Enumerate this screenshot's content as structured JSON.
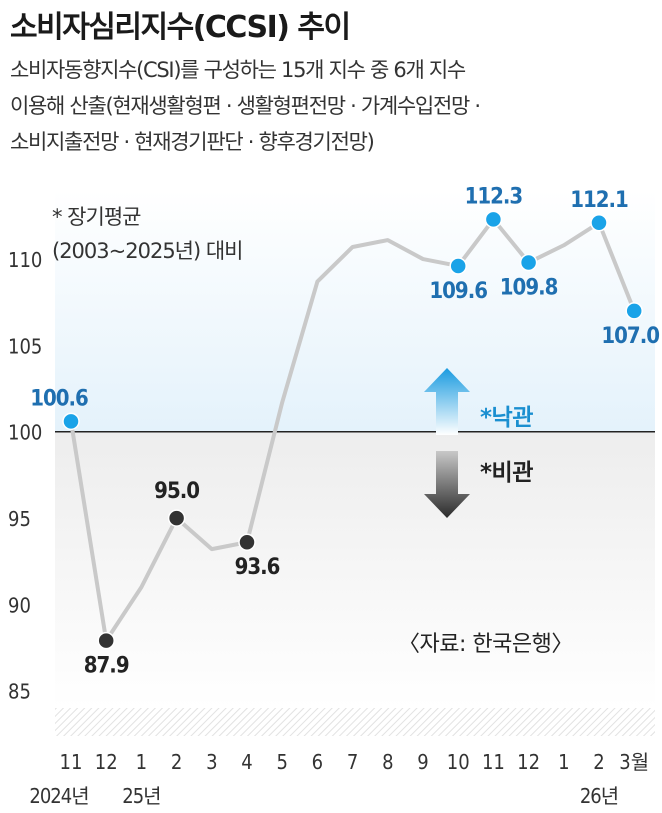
{
  "title": "소비자심리지수(CCSI) 추이",
  "subtitle_lines": [
    "소비자동향지수(CSI)를 구성하는 15개 지수 중 6개 지수",
    "이용해 산출(현재생활형편 · 생활형편전망 · 가계수입전망 ·",
    "소비지출전망 · 현재경기판단 · 향후경기전망)"
  ],
  "note_lines": [
    "* 장기평균",
    "(2003~2025년) 대비"
  ],
  "source": "〈자료: 한국은행〉",
  "optimism_label": "*낙관",
  "pessimism_label": "*비관",
  "colors": {
    "line": "#c9c9c9",
    "marker_up": "#1aa3e8",
    "marker_down": "#333333",
    "label_up": "#1f6fb0",
    "label_down": "#222222",
    "band_top": "#e4f2fb",
    "band_bottom": "#ededed",
    "baseline": "#222222"
  },
  "chart_data": {
    "type": "line",
    "x_labels": [
      "11",
      "12",
      "1",
      "2",
      "3",
      "4",
      "5",
      "6",
      "7",
      "8",
      "9",
      "10",
      "11",
      "12",
      "1",
      "2",
      "3월"
    ],
    "year_labels": [
      {
        "index": 0,
        "label": "2024년"
      },
      {
        "index": 2,
        "label": "25년"
      },
      {
        "index": 15,
        "label": "26년"
      }
    ],
    "values": [
      100.6,
      87.9,
      91.0,
      95.0,
      93.2,
      93.6,
      101.7,
      108.7,
      110.7,
      111.1,
      110.0,
      109.6,
      112.3,
      109.8,
      110.8,
      112.1,
      107.0
    ],
    "labeled_points": [
      0,
      1,
      3,
      5,
      11,
      12,
      13,
      15,
      16
    ],
    "point_labels": [
      "100.6",
      "87.9",
      "",
      "95.0",
      "",
      "93.6",
      "",
      "",
      "",
      "",
      "",
      "109.6",
      "112.3",
      "109.8",
      "",
      "112.1",
      "107.0"
    ],
    "y_ticks": [
      "85",
      "90",
      "95",
      "100",
      "105",
      "110"
    ],
    "ylim": [
      84,
      114
    ],
    "baseline": 100
  }
}
